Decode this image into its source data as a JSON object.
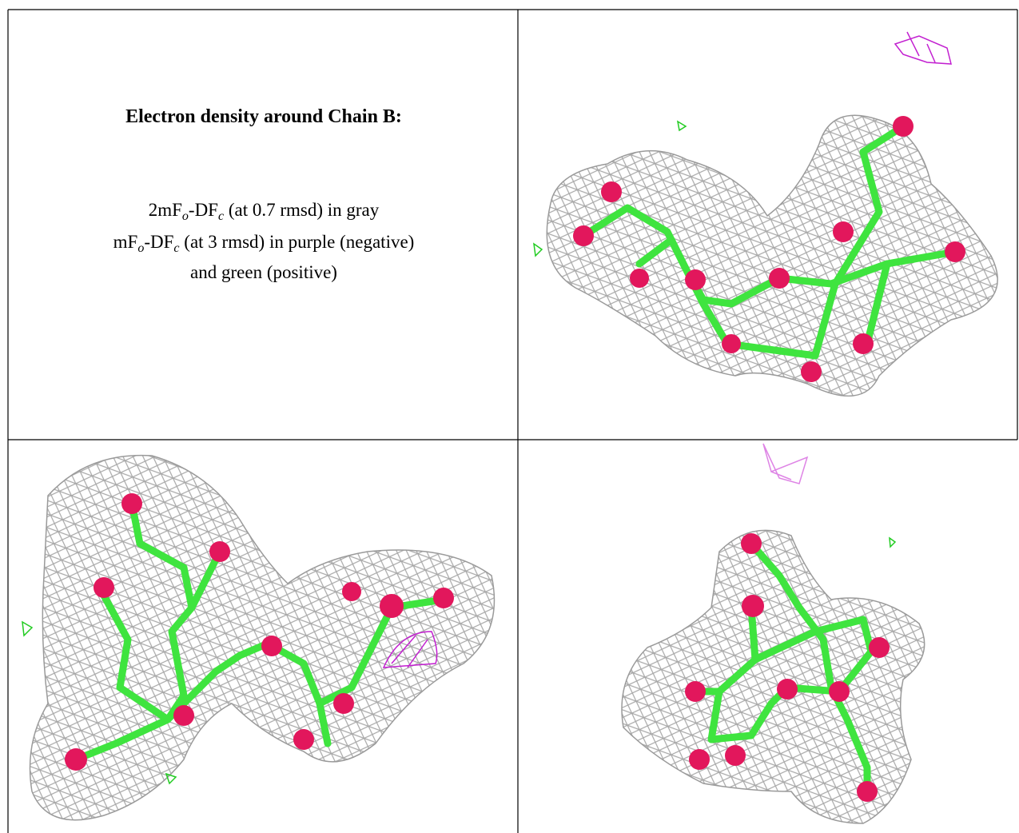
{
  "caption": {
    "title": "Electron density around Chain B:",
    "lines": [
      [
        "2mF",
        "o",
        "-DF",
        "c",
        " (at 0.7 rmsd) in gray"
      ],
      [
        "mF",
        "o",
        "-DF",
        "c",
        " (at 3 rmsd) in purple (negative)"
      ],
      [
        "and green (positive)"
      ]
    ]
  }
}
